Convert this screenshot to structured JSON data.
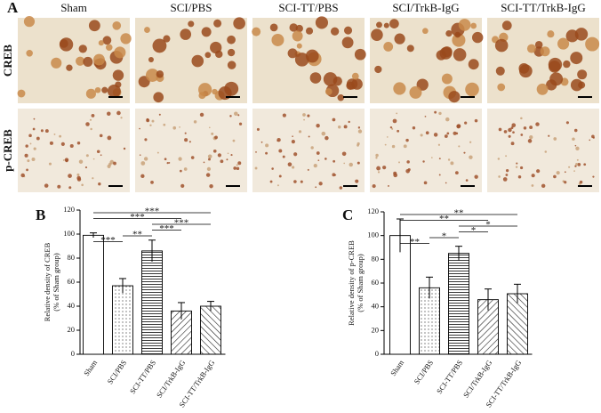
{
  "panel_labels": [
    "A",
    "B",
    "C"
  ],
  "micrographs": {
    "columns": [
      "Sham",
      "SCI/PBS",
      "SCI-TT/PBS",
      "SCI/TrkB-IgG",
      "SCI-TT/TrkB-IgG"
    ],
    "rows": [
      "CREB",
      "p-CREB"
    ]
  },
  "chart_data": [
    {
      "type": "bar",
      "ylabel": [
        "Relative density of CREB",
        "(% of Sham group)"
      ],
      "categories": [
        "Sham",
        "SCI/PBS",
        "SCI-TT/PBS",
        "SCI/TrkB-IgG",
        "SCI-TT/TrkB-IgG"
      ],
      "values": [
        99,
        57,
        86,
        36,
        40
      ],
      "errors": [
        2,
        6,
        9,
        7,
        4
      ],
      "patterns": [
        "none",
        "dots",
        "horizontal",
        "diagonal",
        "diagonal-reverse"
      ],
      "ylim": [
        0,
        120
      ],
      "yticks": [
        0,
        20,
        40,
        60,
        80,
        100,
        120
      ],
      "annotations": [
        {
          "between": [
            "Sham",
            "SCI/PBS"
          ],
          "label": "***"
        },
        {
          "between": [
            "SCI/PBS",
            "SCI-TT/PBS"
          ],
          "label": "**"
        },
        {
          "between": [
            "SCI-TT/PBS",
            "SCI/TrkB-IgG"
          ],
          "label": "***"
        },
        {
          "between": [
            "SCI-TT/PBS",
            "SCI-TT/TrkB-IgG"
          ],
          "label": "***"
        },
        {
          "between": [
            "Sham",
            "SCI/TrkB-IgG"
          ],
          "label": "***"
        },
        {
          "between": [
            "Sham",
            "SCI-TT/TrkB-IgG"
          ],
          "label": "***"
        }
      ]
    },
    {
      "type": "bar",
      "ylabel": [
        "Relative density of p-CREB",
        "(% of Sham group)"
      ],
      "categories": [
        "Sham",
        "SCI/PBS",
        "SCI-TT/PBS",
        "SCI/TrkB-IgG",
        "SCI-TT/TrkB-IgG"
      ],
      "values": [
        100,
        56,
        85,
        46,
        51
      ],
      "errors": [
        14,
        9,
        6,
        9,
        8
      ],
      "patterns": [
        "none",
        "dots",
        "horizontal",
        "diagonal",
        "diagonal-reverse"
      ],
      "ylim": [
        0,
        120
      ],
      "yticks": [
        0,
        20,
        40,
        60,
        80,
        100,
        120
      ],
      "annotations": [
        {
          "between": [
            "Sham",
            "SCI/PBS"
          ],
          "label": "**"
        },
        {
          "between": [
            "SCI/PBS",
            "SCI-TT/PBS"
          ],
          "label": "*"
        },
        {
          "between": [
            "SCI-TT/PBS",
            "SCI/TrkB-IgG"
          ],
          "label": "*"
        },
        {
          "between": [
            "SCI-TT/PBS",
            "SCI-TT/TrkB-IgG"
          ],
          "label": "*"
        },
        {
          "between": [
            "Sham",
            "SCI/TrkB-IgG"
          ],
          "label": "**"
        },
        {
          "between": [
            "Sham",
            "SCI-TT/TrkB-IgG"
          ],
          "label": "**"
        }
      ]
    }
  ]
}
